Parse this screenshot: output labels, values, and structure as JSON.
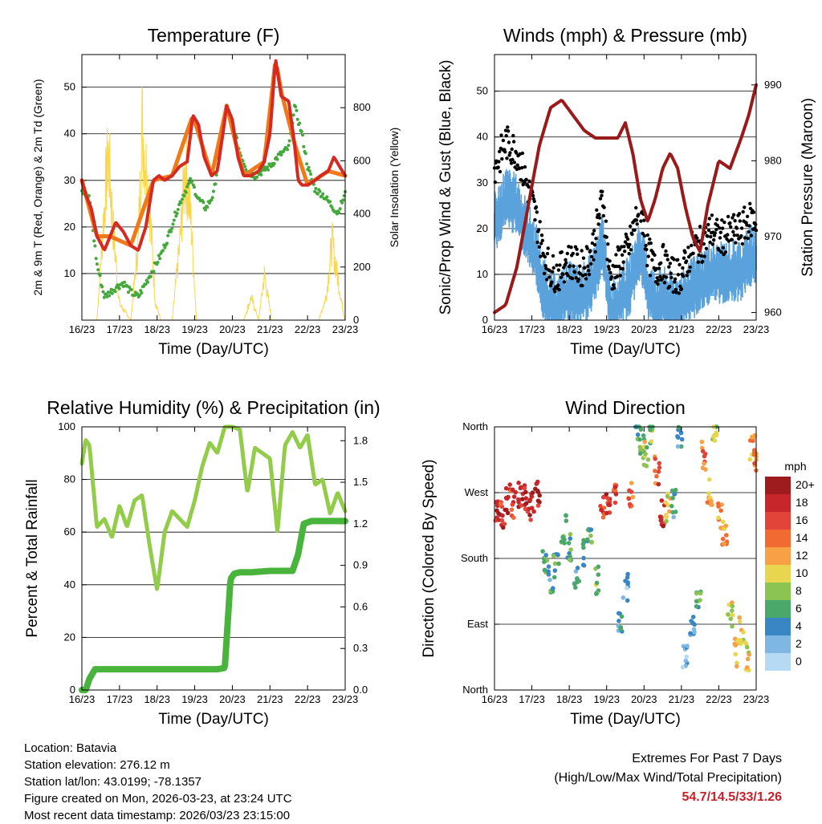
{
  "day_ticks": [
    "16/23",
    "17/23",
    "18/23",
    "19/23",
    "20/23",
    "21/23",
    "22/23",
    "23/23"
  ],
  "chart_data": [
    {
      "id": "temperature",
      "type": "line",
      "title": "Temperature (F)",
      "xlabel": "Time (Day/UTC)",
      "ylabel": "2m & 9m T (Red, Orange) & 2m Td (Green)",
      "ylabel_right": "Solar Insolation (Yellow)",
      "ylim": [
        0,
        57
      ],
      "yticks": [
        10,
        20,
        30,
        40,
        50
      ],
      "ylim_right": [
        0,
        1000
      ],
      "yticks_right": [
        0,
        200,
        400,
        600,
        800
      ],
      "series": [
        {
          "name": "2m Temperature",
          "color": "#d42a22",
          "x": [
            0,
            0.1,
            0.25,
            0.4,
            0.6,
            0.75,
            0.9,
            1.0,
            1.1,
            1.3,
            1.5,
            1.7,
            1.9,
            2.05,
            2.2,
            2.4,
            2.6,
            2.8,
            2.95,
            3.1,
            3.25,
            3.45,
            3.6,
            3.75,
            3.85,
            4.0,
            4.15,
            4.3,
            4.5,
            4.7,
            4.85,
            5.0,
            5.15,
            5.3,
            5.5,
            5.65,
            5.75,
            5.85,
            6.0,
            6.2,
            6.35,
            6.55,
            6.7,
            6.85,
            7.0
          ],
          "values": [
            30,
            27,
            24,
            18,
            15,
            18,
            21,
            20,
            19,
            16,
            15,
            20,
            30,
            31,
            30,
            31,
            33,
            34,
            44,
            42,
            35,
            31,
            32,
            40,
            46,
            43,
            35,
            31,
            31,
            32,
            34,
            40,
            56,
            48,
            47,
            38,
            30,
            29,
            29,
            30,
            31,
            32,
            35,
            33,
            31
          ]
        },
        {
          "name": "9m Temperature",
          "color": "#f07a1a",
          "x": [
            0,
            0.4,
            0.75,
            1.3,
            1.9,
            2.4,
            2.95,
            3.45,
            3.85,
            4.3,
            4.85,
            5.15,
            5.3,
            5.65,
            6.0,
            6.55,
            7.0
          ],
          "values": [
            30,
            18,
            18,
            16,
            30,
            31,
            44,
            31,
            46,
            31,
            34,
            56,
            49,
            38,
            29,
            32,
            31
          ]
        },
        {
          "name": "2m Dew Point",
          "color": "#44a83c",
          "x": [
            0,
            0.2,
            0.4,
            0.6,
            0.9,
            1.1,
            1.3,
            1.5,
            1.7,
            1.9,
            2.1,
            2.3,
            2.5,
            2.7,
            2.9,
            3.1,
            3.3,
            3.5,
            3.7,
            3.85,
            4.0,
            4.2,
            4.4,
            4.6,
            4.8,
            5.0,
            5.2,
            5.5,
            5.65,
            5.85,
            6.0,
            6.2,
            6.4,
            6.6,
            6.8,
            7.0
          ],
          "values": [
            28,
            26,
            12,
            5,
            7,
            8,
            6,
            5,
            8,
            11,
            14,
            18,
            23,
            27,
            30,
            26,
            24,
            27,
            38,
            46,
            42,
            36,
            32,
            31,
            32,
            33,
            35,
            37,
            46,
            40,
            33,
            28,
            27,
            25,
            23,
            27
          ]
        },
        {
          "name": "Solar Insolation",
          "color": "#fbd648",
          "axis": "right",
          "x": [
            0,
            0.4,
            0.55,
            0.7,
            0.85,
            1.0,
            1.3,
            1.5,
            1.6,
            1.8,
            1.95,
            2.1,
            2.4,
            2.6,
            2.75,
            2.9,
            3.05,
            3.3,
            3.8,
            4.0,
            4.3,
            4.5,
            4.7,
            4.85,
            4.95,
            5.05,
            5.3,
            5.8,
            6.0,
            6.3,
            6.5,
            6.65,
            6.8,
            6.95,
            7.0
          ],
          "values": [
            0,
            0,
            420,
            820,
            400,
            80,
            0,
            380,
            950,
            560,
            90,
            0,
            0,
            360,
            750,
            480,
            0,
            0,
            0,
            0,
            0,
            110,
            0,
            220,
            110,
            0,
            0,
            0,
            0,
            0,
            120,
            380,
            210,
            40,
            0
          ]
        }
      ]
    },
    {
      "id": "winds",
      "type": "scatter",
      "title": "Winds (mph) & Pressure (mb)",
      "xlabel": "Time (Day/UTC)",
      "ylabel": "Sonic/Prop Wind & Gust (Blue, Black)",
      "ylabel_right": "Station Pressure (Maroon)",
      "ylim": [
        0,
        58
      ],
      "yticks": [
        0,
        10,
        20,
        30,
        40,
        50
      ],
      "ylim_right": [
        959,
        994
      ],
      "yticks_right": [
        960,
        970,
        980,
        990
      ],
      "series": [
        {
          "name": "Wind Gust",
          "color": "#000000",
          "x": [
            0,
            0.3,
            0.6,
            0.9,
            1.1,
            1.3,
            1.5,
            1.7,
            1.9,
            2.1,
            2.3,
            2.6,
            2.9,
            3.1,
            3.4,
            3.6,
            3.9,
            4.1,
            4.3,
            4.5,
            4.7,
            5.0,
            5.3,
            5.6,
            5.8,
            6.0,
            6.3,
            6.6,
            6.8,
            7.0
          ],
          "values": [
            32,
            38,
            36,
            28,
            22,
            14,
            10,
            9,
            12,
            12,
            10,
            14,
            26,
            8,
            13,
            15,
            25,
            14,
            10,
            12,
            9,
            9,
            15,
            16,
            19,
            17,
            18,
            19,
            21,
            21
          ]
        },
        {
          "name": "Sonic/Prop Wind",
          "color": "#5ba2dc",
          "x": [
            0,
            0.3,
            0.6,
            0.9,
            1.1,
            1.3,
            1.5,
            1.7,
            1.9,
            2.1,
            2.3,
            2.6,
            2.9,
            3.1,
            3.4,
            3.6,
            3.9,
            4.1,
            4.3,
            4.5,
            4.7,
            5.0,
            5.3,
            5.6,
            5.8,
            6.0,
            6.3,
            6.6,
            6.8,
            7.0
          ],
          "values": [
            22,
            28,
            26,
            20,
            16,
            8,
            5,
            4,
            7,
            7,
            6,
            9,
            18,
            3,
            7,
            8,
            17,
            8,
            5,
            6,
            5,
            5,
            8,
            10,
            12,
            11,
            12,
            12,
            15,
            15
          ]
        },
        {
          "name": "Station Pressure",
          "color": "#9a1a1c",
          "axis": "right",
          "x": [
            0,
            0.3,
            0.6,
            0.9,
            1.2,
            1.5,
            1.8,
            2.1,
            2.4,
            2.7,
            3.0,
            3.3,
            3.5,
            3.7,
            3.9,
            4.1,
            4.3,
            4.5,
            4.7,
            4.9,
            5.1,
            5.3,
            5.5,
            5.7,
            6.0,
            6.3,
            6.6,
            6.8,
            7.0
          ],
          "values": [
            960,
            961,
            966,
            974,
            982,
            987,
            988,
            986,
            984,
            983,
            983,
            983,
            985,
            981,
            975,
            972,
            975,
            979,
            981,
            979,
            974,
            970,
            968,
            974,
            980,
            979,
            983,
            986,
            990
          ]
        }
      ]
    },
    {
      "id": "humidity",
      "type": "line",
      "title": "Relative Humidity (%) & Precipitation (in)",
      "xlabel": "Time (Day/UTC)",
      "ylabel": "Percent & Total Rainfall",
      "ylim": [
        0,
        100
      ],
      "yticks": [
        0,
        20,
        40,
        60,
        80,
        100
      ],
      "ylim_right": [
        0,
        1.9
      ],
      "yticks_right": [
        "0.0",
        "0.3",
        "0.6",
        "0.9",
        "1.2",
        "1.5",
        "1.8"
      ],
      "series": [
        {
          "name": "Relative Humidity",
          "color": "#92cc4a",
          "x": [
            0,
            0.1,
            0.2,
            0.4,
            0.6,
            0.8,
            1.0,
            1.2,
            1.4,
            1.6,
            1.8,
            2.0,
            2.2,
            2.4,
            2.6,
            2.8,
            3.0,
            3.2,
            3.4,
            3.6,
            3.8,
            4.0,
            4.2,
            4.4,
            4.6,
            4.8,
            5.0,
            5.2,
            5.4,
            5.6,
            5.8,
            6.0,
            6.2,
            6.4,
            6.6,
            6.8,
            7.0
          ],
          "values": [
            86,
            95,
            93,
            62,
            65,
            58,
            70,
            62,
            72,
            74,
            55,
            38,
            60,
            68,
            65,
            62,
            72,
            85,
            94,
            90,
            100,
            100,
            99,
            75,
            92,
            90,
            88,
            60,
            93,
            98,
            92,
            97,
            78,
            80,
            67,
            75,
            68
          ]
        },
        {
          "name": "Total Precipitation",
          "color": "#48b43c",
          "axis": "right",
          "x": [
            0,
            0.1,
            0.2,
            0.35,
            0.5,
            1.0,
            2.0,
            3.0,
            3.6,
            3.8,
            3.95,
            4.05,
            4.2,
            4.5,
            5.0,
            5.4,
            5.6,
            5.75,
            5.9,
            6.1,
            6.5,
            7.0
          ],
          "values": [
            0,
            0.0,
            0.08,
            0.15,
            0.15,
            0.15,
            0.15,
            0.15,
            0.15,
            0.16,
            0.8,
            0.84,
            0.85,
            0.85,
            0.86,
            0.86,
            0.86,
            0.98,
            1.2,
            1.22,
            1.22,
            1.22
          ]
        }
      ]
    },
    {
      "id": "direction",
      "type": "scatter",
      "title": "Wind Direction",
      "xlabel": "Time (Day/UTC)",
      "ylabel": "Direction (Colored By Speed)",
      "ylim": [
        0,
        360
      ],
      "ytick_labels": [
        "North",
        "East",
        "South",
        "West",
        "North"
      ],
      "ytick_values": [
        0,
        90,
        180,
        270,
        360
      ],
      "colorbar": {
        "title": "mph",
        "labels": [
          "20+",
          "18",
          "16",
          "14",
          "12",
          "10",
          "8",
          "6",
          "4",
          "2",
          "0"
        ],
        "colors": [
          "#9e1c1e",
          "#c7262a",
          "#e2443a",
          "#f06a32",
          "#f7a045",
          "#e8d650",
          "#8cc453",
          "#4aa86a",
          "#3a86c4",
          "#7eb6e4",
          "#b6daf4"
        ]
      },
      "series": [
        {
          "name": "Direction",
          "x": [
            0.05,
            0.2,
            0.35,
            0.5,
            0.7,
            0.85,
            1.0,
            1.15,
            1.35,
            1.5,
            1.65,
            1.85,
            2.0,
            2.2,
            2.4,
            2.55,
            2.75,
            2.9,
            3.05,
            3.2,
            3.35,
            3.5,
            3.65,
            3.8,
            3.95,
            4.05,
            4.2,
            4.35,
            4.5,
            4.65,
            4.8,
            4.95,
            5.1,
            5.3,
            5.45,
            5.6,
            5.75,
            5.9,
            6.05,
            6.15,
            6.3,
            6.45,
            6.6,
            6.75,
            6.9,
            7.0
          ],
          "values": [
            250,
            240,
            262,
            255,
            265,
            262,
            252,
            270,
            175,
            150,
            172,
            220,
            195,
            160,
            190,
            210,
            150,
            250,
            255,
            275,
            95,
            140,
            270,
            360,
            340,
            320,
            355,
            300,
            240,
            250,
            255,
            350,
            50,
            90,
            120,
            320,
            270,
            360,
            240,
            210,
            100,
            50,
            80,
            45,
            335,
            320
          ],
          "speeds": [
            18,
            17,
            18,
            16,
            18,
            17,
            18,
            19,
            6,
            5,
            6,
            7,
            6,
            5,
            4,
            6,
            8,
            16,
            17,
            16,
            4,
            3,
            14,
            6,
            7,
            9,
            8,
            15,
            17,
            10,
            4,
            4,
            3,
            2,
            7,
            14,
            12,
            8,
            12,
            13,
            10,
            12,
            9,
            10,
            12,
            14
          ]
        }
      ]
    }
  ],
  "info": {
    "location": "Location: Batavia",
    "elevation": "Station elevation: 276.12 m",
    "latlon": "Station lat/lon: 43.0199; -78.1357",
    "created": "Figure created on Mon, 2026-03-23, at 23:24 UTC",
    "latest": "Most recent data timestamp: 2026/03/23 23:15:00"
  },
  "extremes": {
    "title": "Extremes For Past 7 Days",
    "subtitle": "(High/Low/Max Wind/Total Precipitation)",
    "values": "54.7/14.5/33/1.26"
  }
}
